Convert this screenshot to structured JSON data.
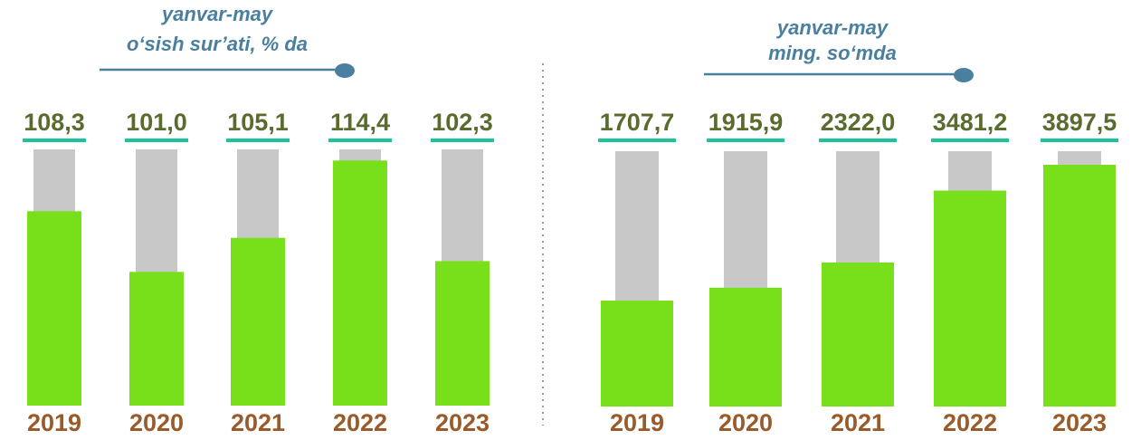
{
  "chart_data": [
    {
      "type": "bar",
      "title": "yanvar-may",
      "subtitle": "o‘sish sur’ati, % da",
      "categories": [
        "2019",
        "2020",
        "2021",
        "2022",
        "2023"
      ],
      "values": [
        108.3,
        101.0,
        105.1,
        114.4,
        102.3
      ],
      "value_labels": [
        "108,3",
        "101,0",
        "105,1",
        "114,4",
        "102,3"
      ],
      "color": "#77e01a",
      "background_color": "#c8c8c8"
    },
    {
      "type": "bar",
      "title": "yanvar-may",
      "subtitle": "ming. so‘mda",
      "categories": [
        "2019",
        "2020",
        "2021",
        "2022",
        "2023"
      ],
      "values": [
        1707.7,
        1915.9,
        2322.0,
        3481.2,
        3897.5
      ],
      "value_labels": [
        "1707,7",
        "1915,9",
        "2322,0",
        "3481,2",
        "3897,5"
      ],
      "color": "#77e01a",
      "background_color": "#c8c8c8"
    }
  ]
}
